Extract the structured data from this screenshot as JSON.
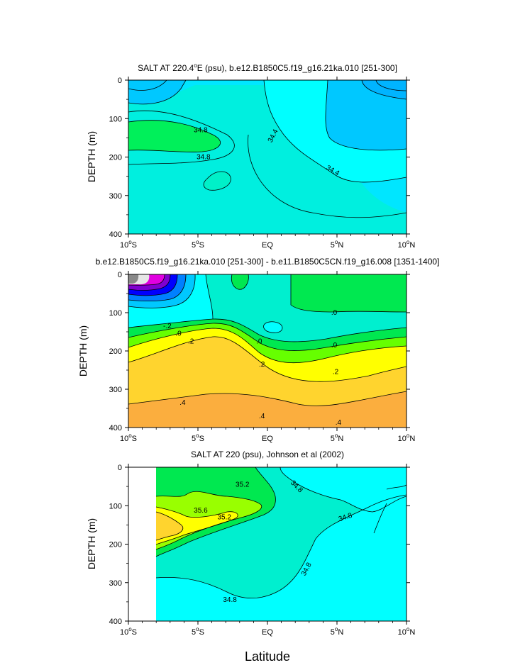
{
  "figure": {
    "xlabel": "Latitude",
    "x_ticks": [
      {
        "value": -10,
        "text": "10",
        "sup": "o",
        "suffix": "S"
      },
      {
        "value": -5,
        "text": "5",
        "sup": "o",
        "suffix": "S"
      },
      {
        "value": 0,
        "text": "EQ",
        "sup": "",
        "suffix": ""
      },
      {
        "value": 5,
        "text": "5",
        "sup": "o",
        "suffix": "N"
      },
      {
        "value": 10,
        "text": "10",
        "sup": "o",
        "suffix": "N"
      }
    ],
    "y_ticks": [
      0,
      100,
      200,
      300,
      400
    ]
  },
  "panels": [
    {
      "title_parts": [
        "SALT AT 220.4",
        "o",
        "E (psu), b.e12.B1850C5.f19_g16.21ka.010 [251-300]"
      ],
      "ylabel": "DEPTH (m)",
      "contour_labels": [
        {
          "text": "34.8",
          "x": -4.8,
          "y": 130
        },
        {
          "text": "34.8",
          "x": -4.6,
          "y": 200
        },
        {
          "text": "34.4",
          "x": 0.4,
          "y": 145,
          "rot": -62
        },
        {
          "text": "34.4",
          "x": 4.7,
          "y": 235,
          "rot": 28
        }
      ]
    },
    {
      "title_parts": [
        "b.e12.B1850C5.f19_g16.21ka.010 [251-300] - b.e11.B1850C5CN.f19_g16.008 [1351-1400]"
      ],
      "ylabel": "DEPTH (m)",
      "contour_labels": [
        {
          "text": ".0",
          "x": 4.8,
          "y": 100
        },
        {
          "text": "-.2",
          "x": -7.2,
          "y": 135
        },
        {
          "text": ".0",
          "x": -6.4,
          "y": 155
        },
        {
          "text": ".0",
          "x": -0.6,
          "y": 175
        },
        {
          "text": ".0",
          "x": 4.8,
          "y": 185
        },
        {
          "text": ".2",
          "x": -5.5,
          "y": 175
        },
        {
          "text": ".2",
          "x": -0.4,
          "y": 235
        },
        {
          "text": ".2",
          "x": 4.9,
          "y": 255
        },
        {
          "text": ".4",
          "x": -6.1,
          "y": 335
        },
        {
          "text": ".4",
          "x": -0.4,
          "y": 370
        },
        {
          "text": ".4",
          "x": 5.1,
          "y": 387
        }
      ]
    },
    {
      "title_parts": [
        "SALT AT 220 (psu), Johnson et al (2002)"
      ],
      "ylabel": "DEPTH (m)",
      "contour_labels": [
        {
          "text": "35.2",
          "x": -1.8,
          "y": 45
        },
        {
          "text": "35.6",
          "x": -4.8,
          "y": 112
        },
        {
          "text": "35.2",
          "x": -3.1,
          "y": 130
        },
        {
          "text": "34.8",
          "x": 2.1,
          "y": 50,
          "rot": 45
        },
        {
          "text": "34.8",
          "x": 5.6,
          "y": 130,
          "rot": -18
        },
        {
          "text": "34.8",
          "x": 2.8,
          "y": 265,
          "rot": -62
        },
        {
          "text": "34.8",
          "x": -2.7,
          "y": 345
        }
      ]
    }
  ],
  "chart_data": [
    {
      "type": "heatmap",
      "title": "SALT AT 220.4°E (psu), b.e12.B1850C5.f19_g16.21ka.010 [251-300]",
      "xlabel": "Latitude",
      "ylabel": "DEPTH (m)",
      "xlim": [
        -10,
        10
      ],
      "ylim": [
        0,
        400
      ],
      "y_inverted": true,
      "colors": {
        "cyan": "#00FFFF",
        "light_blue": "#00E6FF",
        "sky": "#00C8FF",
        "teal": "#00EFDF",
        "green": "#00F05A"
      },
      "labeled_contours": [
        34.4,
        34.8
      ],
      "features": [
        {
          "name": "fresh pool north of equator",
          "value": "<34.4",
          "center": [
            7,
            150
          ]
        },
        {
          "name": "salty tongue south",
          "value": ">34.8",
          "center": [
            -8,
            160
          ]
        }
      ]
    },
    {
      "type": "heatmap",
      "title": "b.e12.B1850C5.f19_g16.21ka.010 [251-300] - b.e11.B1850C5CN.f19_g16.008 [1351-1400]",
      "xlabel": "Latitude",
      "ylabel": "DEPTH (m)",
      "xlim": [
        -10,
        10
      ],
      "ylim": [
        0,
        400
      ],
      "y_inverted": true,
      "labeled_contours": [
        -0.2,
        0.0,
        0.2,
        0.4
      ],
      "colors": {
        "grey": "#888888",
        "white": "#E6E6E6",
        "magenta": "#E000E0",
        "purple": "#8000D0",
        "blue": "#0000FF",
        "mid_blue": "#0080FF",
        "sky": "#00C8FF",
        "cyan": "#00FFFF",
        "teal": "#00EFCF",
        "green": "#00E850",
        "lime": "#66FF00",
        "yellow": "#FFFF00",
        "gold": "#FFD42E",
        "orange": "#FBAE3E"
      },
      "features": [
        {
          "name": "strong negative anomaly",
          "value": "<-0.6",
          "center": [
            -9.5,
            30
          ]
        },
        {
          "name": "positive anomaly deep",
          "value": ">0.4",
          "center": [
            0,
            380
          ]
        }
      ]
    },
    {
      "type": "heatmap",
      "title": "SALT AT 220 (psu), Johnson et al (2002)",
      "xlabel": "Latitude",
      "ylabel": "DEPTH (m)",
      "xlim": [
        -10,
        10
      ],
      "ylim": [
        0,
        400
      ],
      "y_inverted": true,
      "data_extent_lat": [
        -8,
        10
      ],
      "labeled_contours": [
        34.8,
        35.2,
        35.6
      ],
      "colors": {
        "cyan": "#00FFFF",
        "teal": "#00EFCF",
        "green": "#00E850",
        "lime": "#99FF00",
        "yellow": "#FFFF00",
        "gold": "#FFD42E"
      },
      "features": [
        {
          "name": "salinity maximum",
          "value": ">35.6",
          "center": [
            -7.5,
            130
          ]
        }
      ]
    }
  ]
}
